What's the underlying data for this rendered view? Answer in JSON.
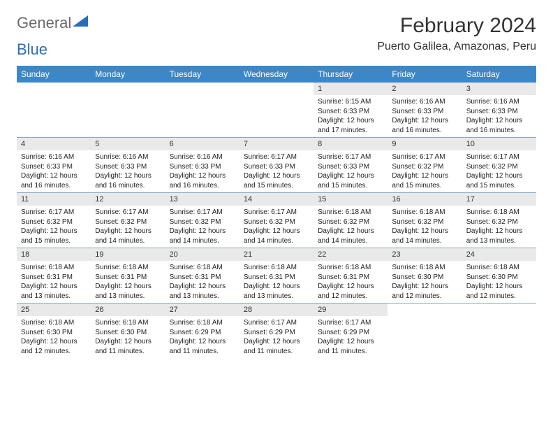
{
  "logo": {
    "text1": "General",
    "text2": "Blue",
    "triangle_color": "#2a6db8"
  },
  "title": "February 2024",
  "location": "Puerto Galilea, Amazonas, Peru",
  "colors": {
    "header_bg": "#3b87c8",
    "header_text": "#ffffff",
    "daynum_bg": "#e9e9e9",
    "week_divider": "#8aa8c4",
    "text": "#222222",
    "title_text": "#333333"
  },
  "typography": {
    "title_fontsize": 30,
    "location_fontsize": 16,
    "dow_fontsize": 12,
    "daynum_fontsize": 11,
    "body_fontsize": 10
  },
  "days_of_week": [
    "Sunday",
    "Monday",
    "Tuesday",
    "Wednesday",
    "Thursday",
    "Friday",
    "Saturday"
  ],
  "weeks": [
    [
      {
        "empty": true
      },
      {
        "empty": true
      },
      {
        "empty": true
      },
      {
        "empty": true
      },
      {
        "num": "1",
        "l1": "Sunrise: 6:15 AM",
        "l2": "Sunset: 6:33 PM",
        "l3": "Daylight: 12 hours",
        "l4": "and 17 minutes."
      },
      {
        "num": "2",
        "l1": "Sunrise: 6:16 AM",
        "l2": "Sunset: 6:33 PM",
        "l3": "Daylight: 12 hours",
        "l4": "and 16 minutes."
      },
      {
        "num": "3",
        "l1": "Sunrise: 6:16 AM",
        "l2": "Sunset: 6:33 PM",
        "l3": "Daylight: 12 hours",
        "l4": "and 16 minutes."
      }
    ],
    [
      {
        "num": "4",
        "l1": "Sunrise: 6:16 AM",
        "l2": "Sunset: 6:33 PM",
        "l3": "Daylight: 12 hours",
        "l4": "and 16 minutes."
      },
      {
        "num": "5",
        "l1": "Sunrise: 6:16 AM",
        "l2": "Sunset: 6:33 PM",
        "l3": "Daylight: 12 hours",
        "l4": "and 16 minutes."
      },
      {
        "num": "6",
        "l1": "Sunrise: 6:16 AM",
        "l2": "Sunset: 6:33 PM",
        "l3": "Daylight: 12 hours",
        "l4": "and 16 minutes."
      },
      {
        "num": "7",
        "l1": "Sunrise: 6:17 AM",
        "l2": "Sunset: 6:33 PM",
        "l3": "Daylight: 12 hours",
        "l4": "and 15 minutes."
      },
      {
        "num": "8",
        "l1": "Sunrise: 6:17 AM",
        "l2": "Sunset: 6:33 PM",
        "l3": "Daylight: 12 hours",
        "l4": "and 15 minutes."
      },
      {
        "num": "9",
        "l1": "Sunrise: 6:17 AM",
        "l2": "Sunset: 6:32 PM",
        "l3": "Daylight: 12 hours",
        "l4": "and 15 minutes."
      },
      {
        "num": "10",
        "l1": "Sunrise: 6:17 AM",
        "l2": "Sunset: 6:32 PM",
        "l3": "Daylight: 12 hours",
        "l4": "and 15 minutes."
      }
    ],
    [
      {
        "num": "11",
        "l1": "Sunrise: 6:17 AM",
        "l2": "Sunset: 6:32 PM",
        "l3": "Daylight: 12 hours",
        "l4": "and 15 minutes."
      },
      {
        "num": "12",
        "l1": "Sunrise: 6:17 AM",
        "l2": "Sunset: 6:32 PM",
        "l3": "Daylight: 12 hours",
        "l4": "and 14 minutes."
      },
      {
        "num": "13",
        "l1": "Sunrise: 6:17 AM",
        "l2": "Sunset: 6:32 PM",
        "l3": "Daylight: 12 hours",
        "l4": "and 14 minutes."
      },
      {
        "num": "14",
        "l1": "Sunrise: 6:17 AM",
        "l2": "Sunset: 6:32 PM",
        "l3": "Daylight: 12 hours",
        "l4": "and 14 minutes."
      },
      {
        "num": "15",
        "l1": "Sunrise: 6:18 AM",
        "l2": "Sunset: 6:32 PM",
        "l3": "Daylight: 12 hours",
        "l4": "and 14 minutes."
      },
      {
        "num": "16",
        "l1": "Sunrise: 6:18 AM",
        "l2": "Sunset: 6:32 PM",
        "l3": "Daylight: 12 hours",
        "l4": "and 14 minutes."
      },
      {
        "num": "17",
        "l1": "Sunrise: 6:18 AM",
        "l2": "Sunset: 6:32 PM",
        "l3": "Daylight: 12 hours",
        "l4": "and 13 minutes."
      }
    ],
    [
      {
        "num": "18",
        "l1": "Sunrise: 6:18 AM",
        "l2": "Sunset: 6:31 PM",
        "l3": "Daylight: 12 hours",
        "l4": "and 13 minutes."
      },
      {
        "num": "19",
        "l1": "Sunrise: 6:18 AM",
        "l2": "Sunset: 6:31 PM",
        "l3": "Daylight: 12 hours",
        "l4": "and 13 minutes."
      },
      {
        "num": "20",
        "l1": "Sunrise: 6:18 AM",
        "l2": "Sunset: 6:31 PM",
        "l3": "Daylight: 12 hours",
        "l4": "and 13 minutes."
      },
      {
        "num": "21",
        "l1": "Sunrise: 6:18 AM",
        "l2": "Sunset: 6:31 PM",
        "l3": "Daylight: 12 hours",
        "l4": "and 13 minutes."
      },
      {
        "num": "22",
        "l1": "Sunrise: 6:18 AM",
        "l2": "Sunset: 6:31 PM",
        "l3": "Daylight: 12 hours",
        "l4": "and 12 minutes."
      },
      {
        "num": "23",
        "l1": "Sunrise: 6:18 AM",
        "l2": "Sunset: 6:30 PM",
        "l3": "Daylight: 12 hours",
        "l4": "and 12 minutes."
      },
      {
        "num": "24",
        "l1": "Sunrise: 6:18 AM",
        "l2": "Sunset: 6:30 PM",
        "l3": "Daylight: 12 hours",
        "l4": "and 12 minutes."
      }
    ],
    [
      {
        "num": "25",
        "l1": "Sunrise: 6:18 AM",
        "l2": "Sunset: 6:30 PM",
        "l3": "Daylight: 12 hours",
        "l4": "and 12 minutes."
      },
      {
        "num": "26",
        "l1": "Sunrise: 6:18 AM",
        "l2": "Sunset: 6:30 PM",
        "l3": "Daylight: 12 hours",
        "l4": "and 11 minutes."
      },
      {
        "num": "27",
        "l1": "Sunrise: 6:18 AM",
        "l2": "Sunset: 6:29 PM",
        "l3": "Daylight: 12 hours",
        "l4": "and 11 minutes."
      },
      {
        "num": "28",
        "l1": "Sunrise: 6:17 AM",
        "l2": "Sunset: 6:29 PM",
        "l3": "Daylight: 12 hours",
        "l4": "and 11 minutes."
      },
      {
        "num": "29",
        "l1": "Sunrise: 6:17 AM",
        "l2": "Sunset: 6:29 PM",
        "l3": "Daylight: 12 hours",
        "l4": "and 11 minutes."
      },
      {
        "empty": true
      },
      {
        "empty": true
      }
    ]
  ]
}
